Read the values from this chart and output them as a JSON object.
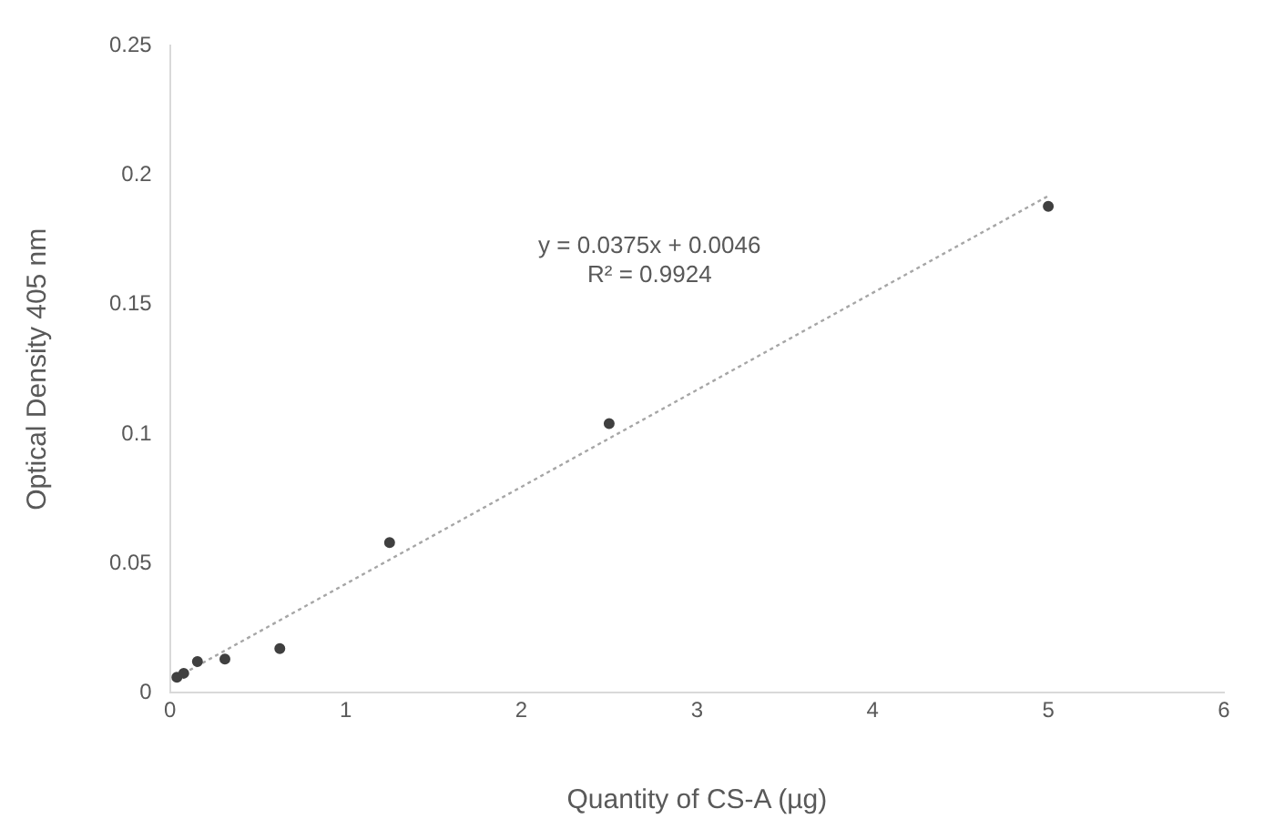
{
  "chart_data": {
    "type": "scatter",
    "xlabel": "Quantity of CS-A (µg)",
    "ylabel": "Optical Density 405 nm",
    "xlim": [
      0,
      6
    ],
    "xticks": [
      0,
      1,
      2,
      3,
      4,
      5,
      6
    ],
    "ylim": [
      0,
      0.25
    ],
    "yticks": [
      0,
      0.05,
      0.1,
      0.15,
      0.2,
      0.25
    ],
    "grid": false,
    "marker": "circle",
    "annotations": [
      "y = 0.0375x + 0.0046",
      "R² = 0.9924"
    ],
    "series": [
      {
        "type": "scatter",
        "color": "#404040",
        "x": [
          0.039,
          0.078,
          0.156,
          0.3125,
          0.625,
          1.25,
          2.5,
          5
        ],
        "values": [
          0.006,
          0.0075,
          0.012,
          0.013,
          0.017,
          0.058,
          0.104,
          0.188
        ]
      },
      {
        "type": "line",
        "color": "#a6a6a6",
        "line_style": "dotted",
        "marker": "none",
        "x": [
          0.039,
          5
        ],
        "values": [
          0.006,
          0.192
        ]
      }
    ]
  }
}
